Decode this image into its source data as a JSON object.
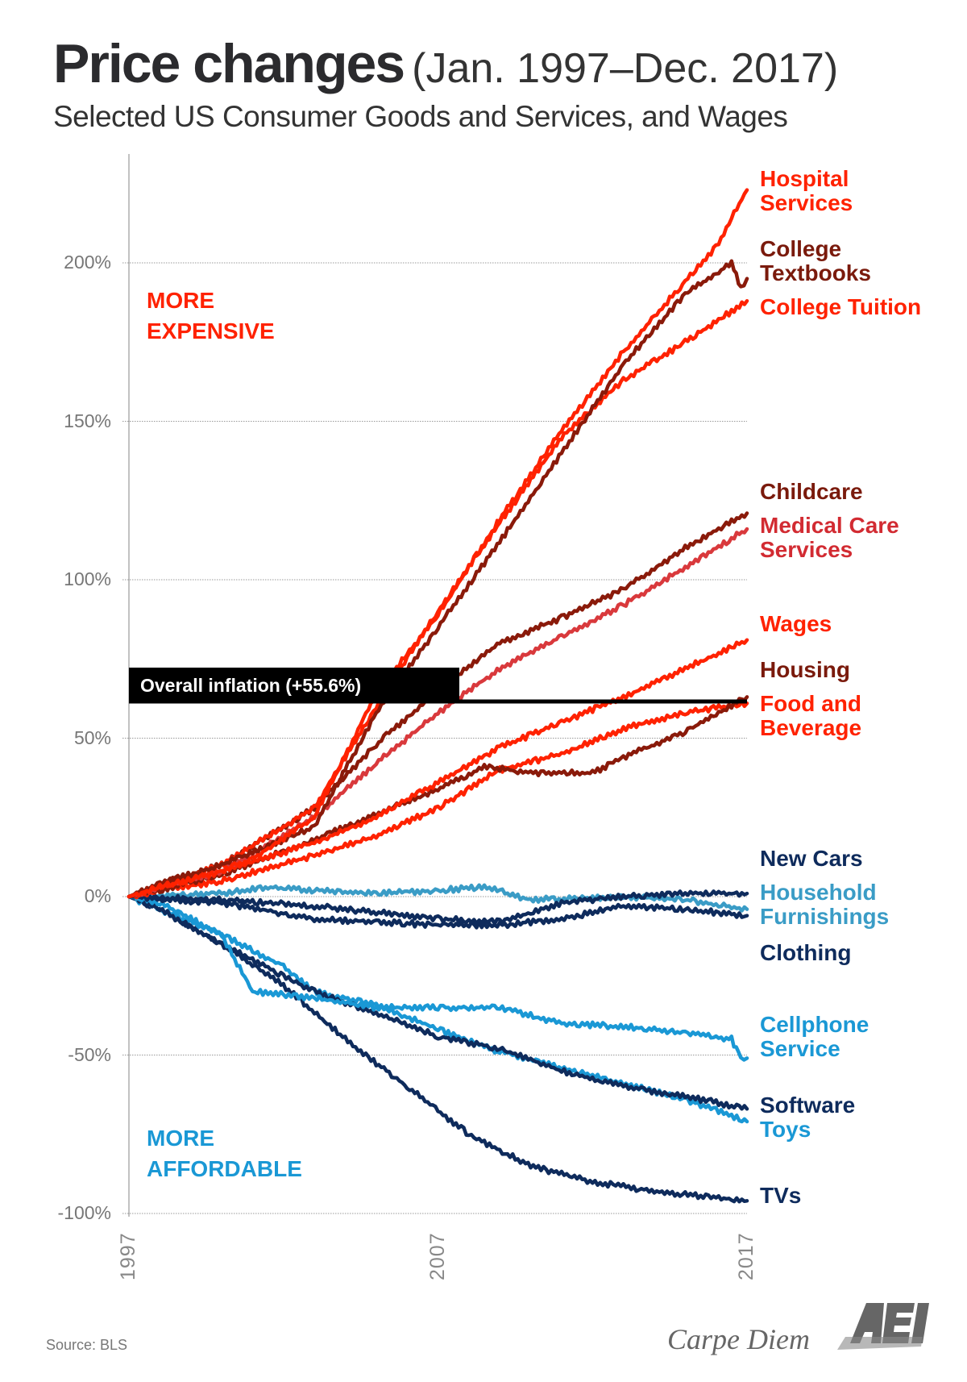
{
  "chart_data": {
    "type": "line",
    "title": "Price changes",
    "title_suffix": "(Jan. 1997–Dec. 2017)",
    "subtitle": "Selected US Consumer Goods and Services, and Wages",
    "xlabel": "",
    "ylabel": "",
    "xlim": [
      1997,
      2017
    ],
    "ylim": [
      -100,
      235
    ],
    "x_ticks": [
      "1997",
      "2007",
      "2017"
    ],
    "y_ticks": [
      {
        "value": 200,
        "label": "200%"
      },
      {
        "value": 150,
        "label": "150%"
      },
      {
        "value": 100,
        "label": "100%"
      },
      {
        "value": 50,
        "label": "50%"
      },
      {
        "value": 0,
        "label": "0%"
      },
      {
        "value": -50,
        "label": "-50%"
      },
      {
        "value": -100,
        "label": "-100%"
      }
    ],
    "grid": "horizontal dotted",
    "zones": {
      "up": "MORE\nEXPENSIVE",
      "up_color": "#ff2200",
      "down": "MORE\nAFFORDABLE",
      "down_color": "#1a98d5"
    },
    "reference_line": {
      "label": "Overall inflation (+55.6%)",
      "value": 55.6
    },
    "series": [
      {
        "name": "Hospital\nServices",
        "color": "#ff2200",
        "points": [
          [
            1997,
            0
          ],
          [
            1998,
            3
          ],
          [
            2000,
            8
          ],
          [
            2001,
            12
          ],
          [
            2003,
            25
          ],
          [
            2005,
            64
          ],
          [
            2007,
            89
          ],
          [
            2009,
            119
          ],
          [
            2011,
            147
          ],
          [
            2013,
            172
          ],
          [
            2015,
            194
          ],
          [
            2016,
            205
          ],
          [
            2017,
            223
          ]
        ]
      },
      {
        "name": "College\nTextbooks",
        "color": "#8a1a0a",
        "points": [
          [
            1997,
            0
          ],
          [
            1998,
            4
          ],
          [
            2000,
            10
          ],
          [
            2003,
            22
          ],
          [
            2005,
            58
          ],
          [
            2007,
            85
          ],
          [
            2009,
            112
          ],
          [
            2011,
            140
          ],
          [
            2013,
            168
          ],
          [
            2015,
            190
          ],
          [
            2016.5,
            200
          ],
          [
            2016.8,
            192
          ],
          [
            2017,
            195
          ]
        ]
      },
      {
        "name": "College Tuition",
        "color": "#ff2200",
        "points": [
          [
            1997,
            0
          ],
          [
            1998,
            3
          ],
          [
            2000,
            10
          ],
          [
            2003,
            28
          ],
          [
            2005,
            60
          ],
          [
            2007,
            90
          ],
          [
            2009,
            118
          ],
          [
            2011,
            145
          ],
          [
            2013,
            163
          ],
          [
            2015,
            175
          ],
          [
            2017,
            188
          ]
        ]
      },
      {
        "name": "Childcare",
        "color": "#8a1a0a",
        "points": [
          [
            1997,
            0
          ],
          [
            1998,
            4
          ],
          [
            2000,
            10
          ],
          [
            2003,
            28
          ],
          [
            2005,
            48
          ],
          [
            2007,
            65
          ],
          [
            2009,
            80
          ],
          [
            2011,
            88
          ],
          [
            2013,
            97
          ],
          [
            2015,
            110
          ],
          [
            2017,
            121
          ]
        ]
      },
      {
        "name": "Medical Care\nServices",
        "color": "#d9393c",
        "points": [
          [
            1997,
            0
          ],
          [
            1998,
            3
          ],
          [
            2000,
            8
          ],
          [
            2003,
            25
          ],
          [
            2005,
            42
          ],
          [
            2007,
            58
          ],
          [
            2009,
            72
          ],
          [
            2011,
            82
          ],
          [
            2013,
            92
          ],
          [
            2015,
            104
          ],
          [
            2017,
            116
          ]
        ]
      },
      {
        "name": "Wages",
        "color": "#ff2200",
        "points": [
          [
            1997,
            0
          ],
          [
            1998,
            3
          ],
          [
            2000,
            8
          ],
          [
            2003,
            17
          ],
          [
            2005,
            25
          ],
          [
            2007,
            36
          ],
          [
            2009,
            47
          ],
          [
            2011,
            55
          ],
          [
            2013,
            63
          ],
          [
            2015,
            72
          ],
          [
            2017,
            81
          ]
        ]
      },
      {
        "name": "Housing",
        "color": "#8a1a0a",
        "points": [
          [
            1997,
            0
          ],
          [
            1998,
            2
          ],
          [
            2000,
            7
          ],
          [
            2003,
            18
          ],
          [
            2005,
            26
          ],
          [
            2007,
            34
          ],
          [
            2008.5,
            41
          ],
          [
            2010,
            39
          ],
          [
            2012,
            39
          ],
          [
            2013,
            44
          ],
          [
            2015,
            52
          ],
          [
            2017,
            63
          ]
        ]
      },
      {
        "name": "Food and\nBeverage",
        "color": "#ff2200",
        "points": [
          [
            1997,
            0
          ],
          [
            1998,
            2
          ],
          [
            2000,
            5
          ],
          [
            2003,
            13
          ],
          [
            2005,
            19
          ],
          [
            2007,
            28
          ],
          [
            2009,
            40
          ],
          [
            2011,
            45
          ],
          [
            2013,
            53
          ],
          [
            2015,
            58
          ],
          [
            2017,
            61
          ]
        ]
      },
      {
        "name": "New Cars",
        "color": "#0e2b5c",
        "points": [
          [
            1997,
            0
          ],
          [
            2000,
            -1
          ],
          [
            2003,
            -3
          ],
          [
            2005,
            -5
          ],
          [
            2007,
            -7
          ],
          [
            2009,
            -8
          ],
          [
            2011,
            -2
          ],
          [
            2013,
            0
          ],
          [
            2015,
            1
          ],
          [
            2017,
            1
          ]
        ]
      },
      {
        "name": "Household\nFurnishings",
        "color": "#3a9cc6",
        "points": [
          [
            1997,
            0
          ],
          [
            2000,
            1
          ],
          [
            2001.5,
            3
          ],
          [
            2003,
            2
          ],
          [
            2005,
            1
          ],
          [
            2007,
            2
          ],
          [
            2008.5,
            3
          ],
          [
            2010,
            -1
          ],
          [
            2013,
            0
          ],
          [
            2015,
            -1
          ],
          [
            2017,
            -4
          ]
        ]
      },
      {
        "name": "Clothing",
        "color": "#0e2b5c",
        "points": [
          [
            1997,
            0
          ],
          [
            2000,
            -2
          ],
          [
            2003,
            -7
          ],
          [
            2005,
            -8
          ],
          [
            2007,
            -9
          ],
          [
            2009,
            -9
          ],
          [
            2011,
            -7
          ],
          [
            2013,
            -3
          ],
          [
            2015,
            -4
          ],
          [
            2017,
            -6
          ]
        ]
      },
      {
        "name": "Cellphone\nService",
        "color": "#1a98d5",
        "points": [
          [
            1997,
            0
          ],
          [
            1998,
            -2
          ],
          [
            2000,
            -12
          ],
          [
            2001,
            -30
          ],
          [
            2002,
            -31
          ],
          [
            2003,
            -32
          ],
          [
            2005,
            -35
          ],
          [
            2007,
            -35
          ],
          [
            2009,
            -35
          ],
          [
            2011,
            -40
          ],
          [
            2013,
            -41
          ],
          [
            2015,
            -43
          ],
          [
            2016.5,
            -45
          ],
          [
            2016.8,
            -51
          ],
          [
            2017,
            -51
          ]
        ]
      },
      {
        "name": "Software",
        "color": "#0e2b5c",
        "points": [
          [
            1997,
            0
          ],
          [
            1998,
            -4
          ],
          [
            2000,
            -15
          ],
          [
            2002,
            -25
          ],
          [
            2003,
            -30
          ],
          [
            2005,
            -37
          ],
          [
            2007,
            -44
          ],
          [
            2009,
            -48
          ],
          [
            2011,
            -55
          ],
          [
            2013,
            -60
          ],
          [
            2015,
            -63
          ],
          [
            2017,
            -67
          ]
        ]
      },
      {
        "name": "Toys",
        "color": "#1a98d5",
        "points": [
          [
            1997,
            0
          ],
          [
            1998,
            -4
          ],
          [
            2000,
            -12
          ],
          [
            2002,
            -22
          ],
          [
            2003,
            -30
          ],
          [
            2005,
            -34
          ],
          [
            2007,
            -42
          ],
          [
            2009,
            -49
          ],
          [
            2011,
            -54
          ],
          [
            2013,
            -59
          ],
          [
            2015,
            -64
          ],
          [
            2017,
            -71
          ]
        ]
      },
      {
        "name": "TVs",
        "color": "#0e2b5c",
        "points": [
          [
            1997,
            0
          ],
          [
            1998,
            -4
          ],
          [
            2000,
            -15
          ],
          [
            2002,
            -28
          ],
          [
            2004,
            -45
          ],
          [
            2006,
            -60
          ],
          [
            2008,
            -75
          ],
          [
            2010,
            -85
          ],
          [
            2012,
            -90
          ],
          [
            2014,
            -93
          ],
          [
            2017,
            -96
          ]
        ]
      }
    ]
  },
  "footer": {
    "source": "Source:  BLS",
    "brand": "Carpe Diem",
    "logo_text": "AEI"
  }
}
